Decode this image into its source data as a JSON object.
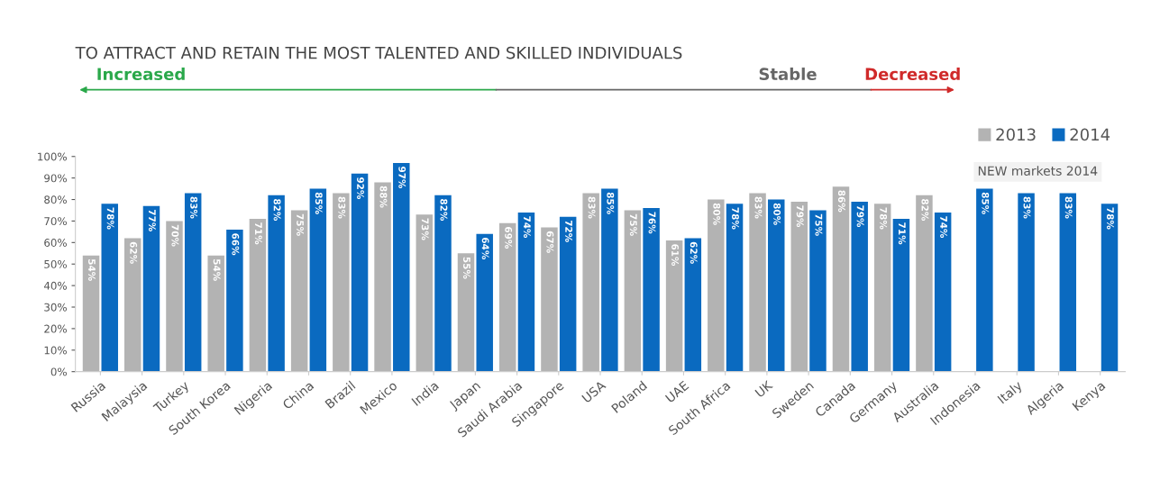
{
  "chart_data": {
    "type": "bar",
    "title": "TO ATTRACT AND RETAIN THE MOST TALENTED AND SKILLED INDIVIDUALS",
    "categories": [
      "Russia",
      "Malaysia",
      "Turkey",
      "South Korea",
      "Nigeria",
      "China",
      "Brazil",
      "Mexico",
      "India",
      "Japan",
      "Saudi Arabia",
      "Singapore",
      "USA",
      "Poland",
      "UAE",
      "South Africa",
      "UK",
      "Sweden",
      "Canada",
      "Germany",
      "Australia",
      "Indonesia",
      "Italy",
      "Algeria",
      "Kenya"
    ],
    "series": [
      {
        "name": "2013",
        "color": "#b3b3b3",
        "values": [
          54,
          62,
          70,
          54,
          71,
          75,
          83,
          88,
          73,
          55,
          69,
          67,
          83,
          75,
          61,
          80,
          83,
          79,
          86,
          78,
          82,
          null,
          null,
          null,
          null
        ],
        "value_labels": [
          "54%",
          "62%",
          "70%",
          "54%",
          "71%",
          "75%",
          "83%",
          "88%",
          "73%",
          "55%",
          "69%",
          "67%",
          "83%",
          "75%",
          "61%",
          "80%",
          "83%",
          "79%",
          "86%",
          "78%",
          "82%",
          null,
          null,
          null,
          null
        ]
      },
      {
        "name": "2014",
        "color": "#0a6ac0",
        "values": [
          78,
          77,
          83,
          66,
          82,
          85,
          92,
          97,
          82,
          64,
          74,
          72,
          85,
          76,
          62,
          78,
          80,
          75,
          79,
          71,
          74,
          85,
          83,
          83,
          78
        ],
        "value_labels": [
          "78%",
          "77%",
          "83%",
          "66%",
          "82%",
          "85%",
          "92%",
          "97%",
          "82%",
          "64%",
          "74%",
          "72%",
          "85%",
          "76%",
          "62%",
          "78%",
          "80%",
          "75%",
          "79%",
          "71%",
          "74%",
          "85%",
          "83%",
          "83%",
          "78%"
        ]
      }
    ],
    "ylim": [
      0,
      100
    ],
    "yticks": [
      {
        "value": 0,
        "label": "0%"
      },
      {
        "value": 10,
        "label": "10%"
      },
      {
        "value": 20,
        "label": "20%"
      },
      {
        "value": 30,
        "label": "30%"
      },
      {
        "value": 40,
        "label": "40%"
      },
      {
        "value": 50,
        "label": "50%"
      },
      {
        "value": 60,
        "label": "60%"
      },
      {
        "value": 70,
        "label": "70%"
      },
      {
        "value": 80,
        "label": "80%"
      },
      {
        "value": 90,
        "label": "90%"
      },
      {
        "value": 100,
        "label": "100%"
      }
    ],
    "annotations": [
      "Increased",
      "Stable",
      "Decreased",
      "NEW markets 2014"
    ],
    "legend": "top right"
  }
}
